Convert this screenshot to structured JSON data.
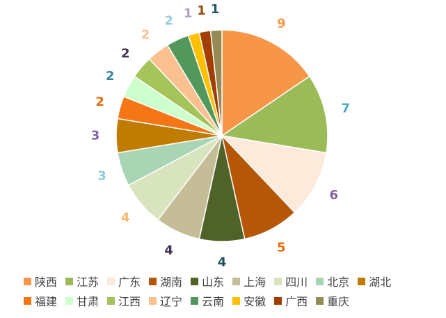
{
  "chart_data": {
    "type": "pie",
    "title": "",
    "categories": [
      "陕西",
      "江苏",
      "广东",
      "湖南",
      "山东",
      "上海",
      "四川",
      "北京",
      "湖北",
      "福建",
      "甘肃",
      "江西",
      "辽宁",
      "云南",
      "安徽",
      "广西",
      "重庆"
    ],
    "values": [
      9,
      7,
      6,
      5,
      4,
      4,
      4,
      3,
      3,
      2,
      2,
      2,
      2,
      2,
      1,
      1,
      1
    ],
    "slice_colors": [
      "#F79646",
      "#9BBB59",
      "#FDEADA",
      "#B65708",
      "#4F6228",
      "#C4BD97",
      "#D7E4BD",
      "#A9D5B5",
      "#C07C00",
      "#F47614",
      "#CCFFCC",
      "#A4C45A",
      "#FAC090",
      "#51985A",
      "#FFC000",
      "#A33E03",
      "#948A54"
    ],
    "label_colors": [
      "#F79646",
      "#4BACC6",
      "#8064A2",
      "#E36C09",
      "#1F4E5F",
      "#403151",
      "#F9B96D",
      "#92CDDC",
      "#8064A2",
      "#E36C09",
      "#31859C",
      "#403151",
      "#FAC090",
      "#92CDDC",
      "#B3A2C7",
      "#984807",
      "#215967"
    ],
    "legend_position": "bottom"
  }
}
